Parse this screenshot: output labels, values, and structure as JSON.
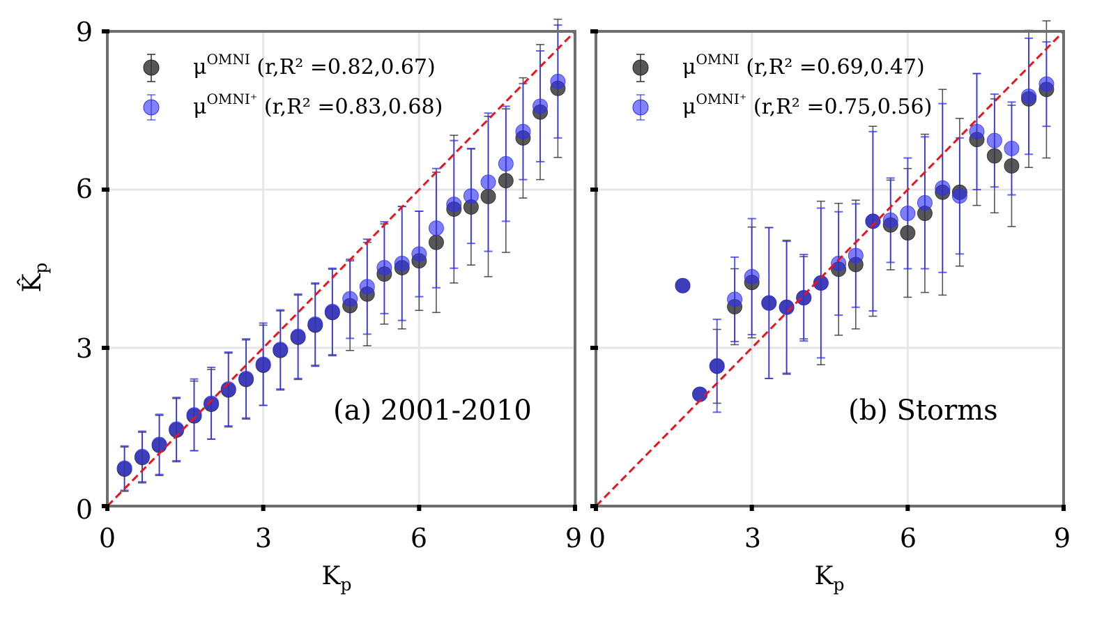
{
  "figure": {
    "shared_ylabel_main": "K̂",
    "shared_ylabel_sub": "p",
    "yticks": [
      "0",
      "3",
      "6",
      "9"
    ]
  },
  "colors": {
    "omni": "#3a3a3a",
    "omni_plus": "#2e2ef5",
    "identity": "#e8141e",
    "axes": "#6e6e6e",
    "grid": "#e6e6e6"
  },
  "chart_data": [
    {
      "type": "scatter",
      "panel": "a",
      "annotation": "(a) 2001-2010",
      "xlabel_main": "K",
      "xlabel_sub": "p",
      "ylabel_main": "K̂",
      "ylabel_sub": "p",
      "xlim": [
        0,
        9
      ],
      "ylim": [
        0,
        9
      ],
      "xticks": [
        "0",
        "3",
        "6",
        "9"
      ],
      "grid": true,
      "legend_placement": "top-left",
      "legend": [
        {
          "mu": "μ",
          "sup": "OMNI",
          "text": " (r,R² =0.82,0.67)"
        },
        {
          "mu": "μ",
          "sup": "OMNI⁺",
          "text": " (r,R² =0.83,0.68)"
        }
      ],
      "identity_line": [
        [
          0,
          0
        ],
        [
          9,
          9
        ]
      ],
      "series": [
        {
          "name": "μ^OMNI",
          "color_key": "omni",
          "x": [
            0.33,
            0.67,
            1.0,
            1.33,
            1.67,
            2.0,
            2.33,
            2.67,
            3.0,
            3.33,
            3.67,
            4.0,
            4.33,
            4.67,
            5.0,
            5.33,
            5.67,
            6.0,
            6.33,
            6.67,
            7.0,
            7.33,
            7.67,
            8.0,
            8.33,
            8.67
          ],
          "y": [
            0.7,
            0.92,
            1.15,
            1.44,
            1.71,
            1.93,
            2.2,
            2.4,
            2.67,
            2.95,
            3.2,
            3.43,
            3.67,
            3.8,
            4.02,
            4.4,
            4.52,
            4.65,
            5.0,
            5.63,
            5.67,
            5.87,
            6.17,
            6.98,
            7.47,
            7.92
          ],
          "yerr": [
            0.42,
            0.48,
            0.57,
            0.6,
            0.66,
            0.66,
            0.7,
            0.75,
            0.76,
            0.75,
            0.8,
            0.78,
            0.82,
            0.85,
            0.98,
            0.95,
            1.16,
            0.94,
            1.33,
            1.4,
            1.1,
            1.52,
            1.36,
            1.14,
            1.28,
            1.31
          ]
        },
        {
          "name": "μ^OMNI+",
          "color_key": "omni_plus",
          "x": [
            0.33,
            0.67,
            1.0,
            1.33,
            1.67,
            2.0,
            2.33,
            2.67,
            3.0,
            3.33,
            3.67,
            4.0,
            4.33,
            4.67,
            5.0,
            5.33,
            5.67,
            6.0,
            6.33,
            6.67,
            7.0,
            7.33,
            7.67,
            8.0,
            8.33,
            8.67
          ],
          "y": [
            0.72,
            0.94,
            1.17,
            1.46,
            1.73,
            1.95,
            2.22,
            2.42,
            2.69,
            2.97,
            3.22,
            3.45,
            3.69,
            3.93,
            4.16,
            4.52,
            4.6,
            4.78,
            5.27,
            5.72,
            5.88,
            6.14,
            6.49,
            7.1,
            7.58,
            8.05
          ],
          "yerr": [
            0.42,
            0.48,
            0.57,
            0.6,
            0.68,
            0.68,
            0.7,
            0.75,
            0.78,
            0.75,
            0.8,
            0.78,
            0.82,
            0.75,
            0.9,
            0.87,
            1.08,
            0.81,
            1.13,
            1.21,
            0.9,
            1.31,
            1.09,
            0.91,
            1.05,
            1.07
          ]
        }
      ]
    },
    {
      "type": "scatter",
      "panel": "b",
      "annotation": "(b) Storms",
      "xlabel_main": "K",
      "xlabel_sub": "p",
      "xlim": [
        0,
        9
      ],
      "ylim": [
        0,
        9
      ],
      "xticks": [
        "0",
        "3",
        "6",
        "9"
      ],
      "grid": true,
      "legend_placement": "top-left",
      "legend": [
        {
          "mu": "μ",
          "sup": "OMNI",
          "text": " (r,R² =0.69,0.47)"
        },
        {
          "mu": "μ",
          "sup": "OMNI⁺",
          "text": " (r,R² =0.75,0.56)"
        }
      ],
      "identity_line": [
        [
          0,
          0
        ],
        [
          9,
          9
        ]
      ],
      "series": [
        {
          "name": "μ^OMNI",
          "color_key": "omni",
          "x": [
            1.67,
            2.0,
            2.33,
            2.67,
            3.0,
            3.33,
            3.67,
            4.0,
            4.33,
            4.67,
            5.0,
            5.33,
            5.67,
            6.0,
            6.33,
            6.67,
            7.0,
            7.33,
            7.67,
            8.0,
            8.33,
            8.67
          ],
          "y": [
            4.18,
            2.12,
            2.65,
            3.78,
            4.24,
            3.85,
            3.77,
            3.95,
            4.23,
            4.49,
            4.58,
            5.4,
            5.33,
            5.18,
            5.55,
            5.95,
            5.95,
            6.95,
            6.64,
            6.45,
            7.72,
            7.9
          ],
          "yerr": [
            0,
            0.05,
            0.7,
            0.72,
            1.05,
            1.43,
            1.27,
            0.78,
            1.55,
            1.25,
            1.22,
            1.8,
            0.85,
            1.22,
            1.5,
            1.95,
            1.4,
            1.25,
            1.08,
            1.15,
            1.3,
            1.3
          ]
        },
        {
          "name": "μ^OMNI+",
          "color_key": "omni_plus",
          "x": [
            1.67,
            2.0,
            2.33,
            2.67,
            3.0,
            3.33,
            3.67,
            4.0,
            4.33,
            4.67,
            5.0,
            5.33,
            5.67,
            6.0,
            6.33,
            6.67,
            7.0,
            7.33,
            7.67,
            8.0,
            8.33,
            8.67
          ],
          "y": [
            4.18,
            2.12,
            2.66,
            3.92,
            4.35,
            3.85,
            3.77,
            3.95,
            4.23,
            4.6,
            4.75,
            5.4,
            5.42,
            5.55,
            5.75,
            6.03,
            5.88,
            7.1,
            6.93,
            6.78,
            7.77,
            8.0
          ],
          "yerr": [
            0,
            0.05,
            0.88,
            0.8,
            1.1,
            1.43,
            1.25,
            0.82,
            1.42,
            0.98,
            0.98,
            1.7,
            0.8,
            1.05,
            1.25,
            1.6,
            1.1,
            1.1,
            0.88,
            0.88,
            1.1,
            0.8
          ]
        }
      ]
    }
  ]
}
